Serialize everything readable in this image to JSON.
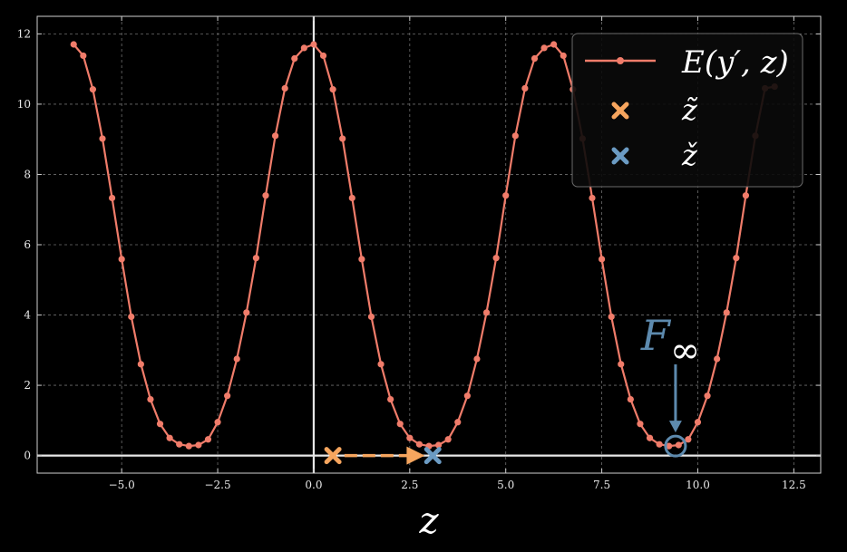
{
  "chart_data": {
    "type": "line",
    "xlabel": "z",
    "ylabel": "",
    "xlim": [
      -7.2,
      13.2
    ],
    "ylim": [
      -0.5,
      12.5
    ],
    "grid": true,
    "legend_placement": "top-right",
    "x_ticks": [
      -5.0,
      -2.5,
      0.0,
      2.5,
      5.0,
      7.5,
      10.0,
      12.5
    ],
    "x_tick_labels": [
      "−5.0",
      "−2.5",
      "0.0",
      "2.5",
      "5.0",
      "7.5",
      "10.0",
      "12.5"
    ],
    "y_ticks": [
      0,
      2,
      4,
      6,
      8,
      10,
      12
    ],
    "y_tick_labels": [
      "0",
      "2",
      "4",
      "6",
      "8",
      "10",
      "12"
    ],
    "series": [
      {
        "name": "E(y′, z)",
        "color": "#f07c6a",
        "points": [
          [
            -6.25,
            11.7
          ],
          [
            -6.0,
            11.38
          ],
          [
            -5.75,
            10.42
          ],
          [
            -5.5,
            9.02
          ],
          [
            -5.25,
            7.33
          ],
          [
            -5.0,
            5.59
          ],
          [
            -4.75,
            3.95
          ],
          [
            -4.5,
            2.6
          ],
          [
            -4.25,
            1.6
          ],
          [
            -4.0,
            0.9
          ],
          [
            -3.75,
            0.5
          ],
          [
            -3.5,
            0.32
          ],
          [
            -3.25,
            0.27
          ],
          [
            -3.0,
            0.3
          ],
          [
            -2.75,
            0.46
          ],
          [
            -2.5,
            0.95
          ],
          [
            -2.25,
            1.7
          ],
          [
            -2.0,
            2.75
          ],
          [
            -1.75,
            4.07
          ],
          [
            -1.5,
            5.62
          ],
          [
            -1.25,
            7.4
          ],
          [
            -1.0,
            9.1
          ],
          [
            -0.75,
            10.45
          ],
          [
            -0.5,
            11.3
          ],
          [
            -0.25,
            11.6
          ],
          [
            0.0,
            11.7
          ],
          [
            0.25,
            11.38
          ],
          [
            0.5,
            10.42
          ],
          [
            0.75,
            9.02
          ],
          [
            1.0,
            7.33
          ],
          [
            1.25,
            5.59
          ],
          [
            1.5,
            3.95
          ],
          [
            1.75,
            2.6
          ],
          [
            2.0,
            1.6
          ],
          [
            2.25,
            0.9
          ],
          [
            2.5,
            0.5
          ],
          [
            2.75,
            0.32
          ],
          [
            3.0,
            0.27
          ],
          [
            3.25,
            0.3
          ],
          [
            3.5,
            0.46
          ],
          [
            3.75,
            0.95
          ],
          [
            4.0,
            1.7
          ],
          [
            4.25,
            2.75
          ],
          [
            4.5,
            4.07
          ],
          [
            4.75,
            5.62
          ],
          [
            5.0,
            7.4
          ],
          [
            5.25,
            9.1
          ],
          [
            5.5,
            10.45
          ],
          [
            5.75,
            11.3
          ],
          [
            6.0,
            11.6
          ],
          [
            6.25,
            11.7
          ],
          [
            6.5,
            11.38
          ],
          [
            6.75,
            10.42
          ],
          [
            7.0,
            9.02
          ],
          [
            7.25,
            7.33
          ],
          [
            7.5,
            5.59
          ],
          [
            7.75,
            3.95
          ],
          [
            8.0,
            2.6
          ],
          [
            8.25,
            1.6
          ],
          [
            8.5,
            0.9
          ],
          [
            8.75,
            0.5
          ],
          [
            9.0,
            0.32
          ],
          [
            9.25,
            0.27
          ],
          [
            9.5,
            0.3
          ],
          [
            9.75,
            0.46
          ],
          [
            10.0,
            0.95
          ],
          [
            10.25,
            1.7
          ],
          [
            10.5,
            2.75
          ],
          [
            10.75,
            4.07
          ],
          [
            11.0,
            5.62
          ],
          [
            11.25,
            7.4
          ],
          [
            11.5,
            9.1
          ],
          [
            11.75,
            10.45
          ],
          [
            12.0,
            10.5
          ]
        ]
      }
    ],
    "markers": [
      {
        "name": "z̃",
        "x": 0.5,
        "y": 0.0,
        "color": "#f6a55e",
        "shape": "x"
      },
      {
        "name": "ž",
        "x": 3.1,
        "y": 0.0,
        "color": "#6b9bc3",
        "shape": "x"
      }
    ],
    "annotations": [
      {
        "text": "F",
        "sub": "∞",
        "target_x": 9.42,
        "target_y": 0.27,
        "color": "#5d8aae"
      }
    ],
    "arrow": {
      "from_x": 0.8,
      "to_x": 2.75,
      "y": 0.0,
      "color": "#f6a55e",
      "style": "dashed"
    },
    "reference_lines": {
      "x": 0.0,
      "y": 0.0,
      "color": "#e8e8e8"
    }
  }
}
